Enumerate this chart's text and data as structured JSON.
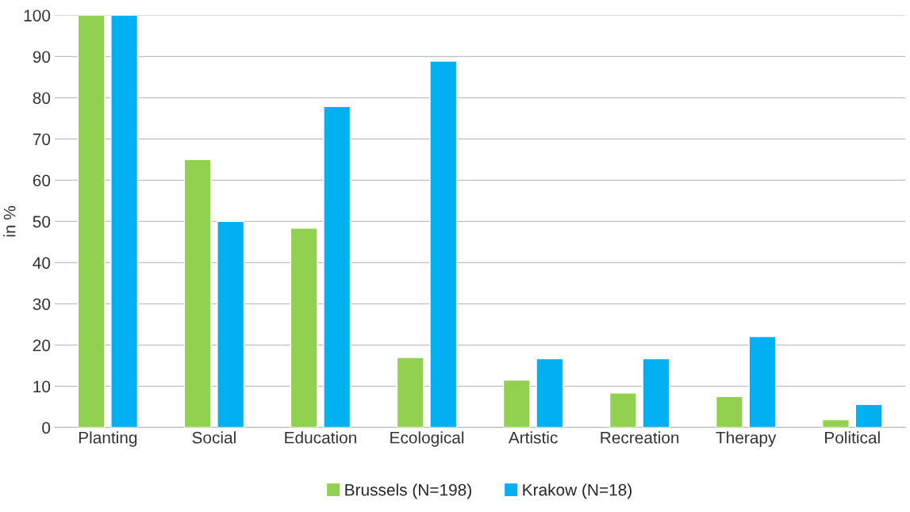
{
  "chart_data": {
    "type": "bar",
    "ylabel": "in %",
    "categories": [
      "Planting",
      "Social",
      "Education",
      "Ecological",
      "Artistic",
      "Recreation",
      "Therapy",
      "Political"
    ],
    "series": [
      {
        "name": "Brussels (N=198)",
        "color": "#92d050",
        "values": [
          100,
          65,
          48.4,
          17,
          11.5,
          8.4,
          7.5,
          1.9
        ]
      },
      {
        "name": "Krakow (N=18)",
        "color": "#00b0f0",
        "values": [
          100,
          50,
          77.9,
          88.9,
          16.7,
          16.7,
          22.1,
          5.6
        ]
      }
    ],
    "ylim": [
      0,
      100
    ],
    "yticks": [
      0,
      10,
      20,
      30,
      40,
      50,
      60,
      70,
      80,
      90,
      100
    ],
    "grid": "y",
    "legend": "bottom"
  }
}
